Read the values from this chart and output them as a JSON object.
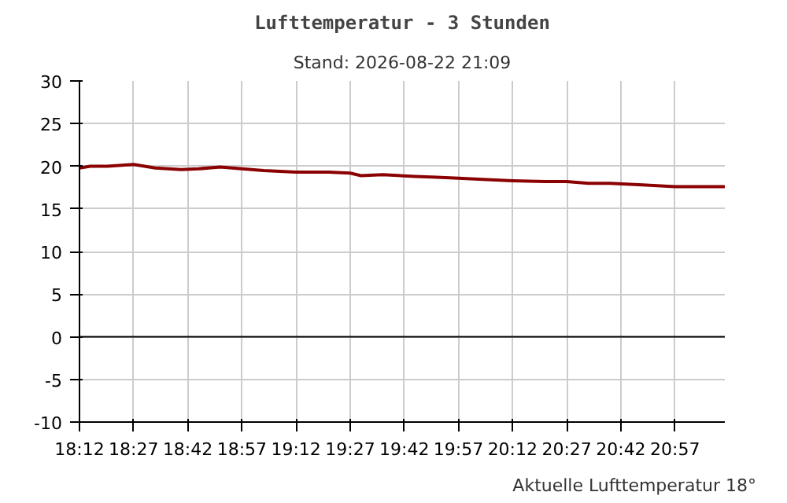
{
  "chart_data": {
    "type": "line",
    "title": "Lufttemperatur - 3 Stunden",
    "subtitle": "Stand: 2026-08-22 21:09",
    "x": [
      18.2,
      18.25,
      18.33,
      18.45,
      18.55,
      18.67,
      18.75,
      18.85,
      18.95,
      19.05,
      19.2,
      19.35,
      19.45,
      19.5,
      19.6,
      19.75,
      19.85,
      19.95,
      20.1,
      20.2,
      20.35,
      20.45,
      20.55,
      20.65,
      20.8,
      20.95,
      21.05,
      21.18
    ],
    "series": [
      {
        "color": "#8b0000",
        "values": [
          19.8,
          20.0,
          20.0,
          20.2,
          19.8,
          19.6,
          19.7,
          19.9,
          19.7,
          19.5,
          19.3,
          19.3,
          19.2,
          18.9,
          19.0,
          18.8,
          18.7,
          18.6,
          18.4,
          18.3,
          18.2,
          18.2,
          18.0,
          18.0,
          17.8,
          17.6,
          17.6,
          17.6
        ]
      }
    ],
    "xlim": [
      18.2,
      21.18
    ],
    "xticks": [
      {
        "value": 18.2,
        "label": "18:12"
      },
      {
        "value": 18.45,
        "label": "18:27"
      },
      {
        "value": 18.7,
        "label": "18:42"
      },
      {
        "value": 18.95,
        "label": "18:57"
      },
      {
        "value": 19.2,
        "label": "19:12"
      },
      {
        "value": 19.45,
        "label": "19:27"
      },
      {
        "value": 19.7,
        "label": "19:42"
      },
      {
        "value": 19.95,
        "label": "19:57"
      },
      {
        "value": 20.2,
        "label": "20:12"
      },
      {
        "value": 20.45,
        "label": "20:27"
      },
      {
        "value": 20.7,
        "label": "20:42"
      },
      {
        "value": 20.95,
        "label": "20:57"
      }
    ],
    "ylim": [
      -10,
      30
    ],
    "yticks": [
      -10,
      -5,
      0,
      5,
      10,
      15,
      20,
      25,
      30
    ],
    "grid": true,
    "marker": "none",
    "line_style": "solid",
    "ref_lines": [
      {
        "axis": "y",
        "value": 0,
        "color": "#000000"
      }
    ],
    "annotations": [
      "Aktuelle Lufttemperatur 18°"
    ]
  }
}
